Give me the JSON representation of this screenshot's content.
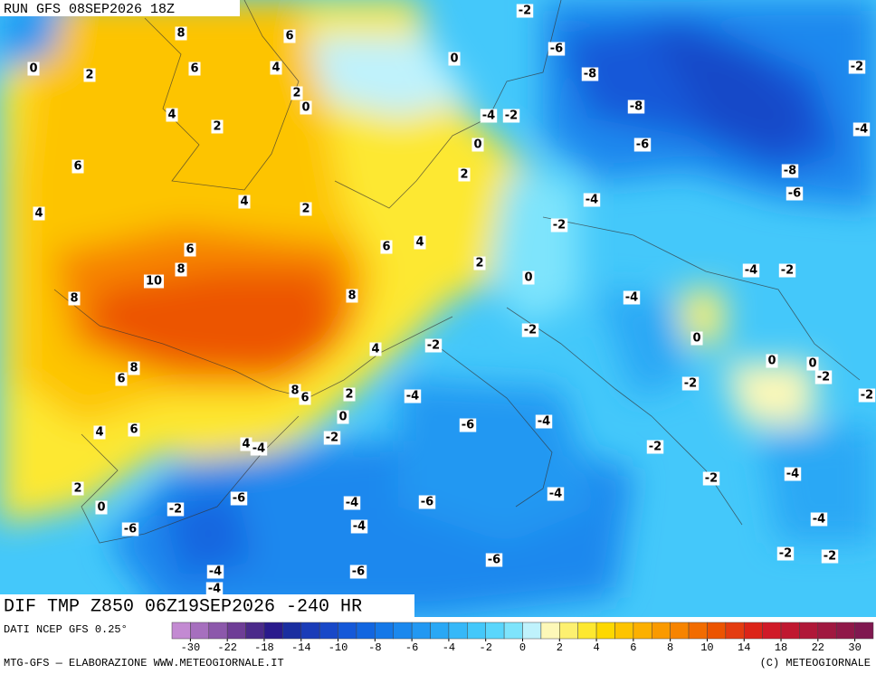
{
  "header": {
    "run": "RUN GFS 08SEP2026 18Z",
    "title": "DIF TMP Z850 06Z19SEP2026 -240 HR"
  },
  "contour_labels": [
    8,
    6,
    0,
    2,
    6,
    4,
    2,
    0,
    4,
    2,
    6,
    4,
    4,
    2,
    6,
    8,
    10,
    8,
    8,
    6,
    4,
    2,
    2,
    0,
    0,
    0,
    -2,
    -6,
    -8,
    -8,
    -6,
    -4,
    -2,
    -4,
    -2,
    -8,
    -6,
    -2,
    -4,
    -4,
    -2,
    -4,
    -2,
    -2,
    0,
    0,
    0,
    -2,
    -2,
    -2,
    4,
    8,
    6,
    8,
    6,
    2,
    0,
    -4,
    -6,
    -4,
    -2,
    4,
    -4,
    6,
    4,
    2,
    0,
    -2,
    -2,
    -4,
    -4,
    -2,
    -2,
    -4,
    -6,
    -4,
    -4,
    -6,
    -2,
    -4,
    -6,
    -4,
    -6,
    -6
  ],
  "footer": {
    "source": "DATI NCEP GFS 0.25°",
    "credit": "MTG-GFS — ELABORAZIONE WWW.METEOGIORNALE.IT",
    "copyright": "(C) METEOGIORNALE"
  },
  "colorbar": {
    "ticks": [
      -30,
      -22,
      -18,
      -14,
      -10,
      -8,
      -6,
      -4,
      -2,
      0,
      2,
      4,
      6,
      8,
      10,
      14,
      18,
      22,
      30
    ],
    "colors": [
      "#c38ad2",
      "#a66fbe",
      "#8c58ab",
      "#6e3d96",
      "#4b2a8a",
      "#2a1a8c",
      "#1a2ea0",
      "#1a3cb8",
      "#1848c8",
      "#1458d8",
      "#1266e0",
      "#1478e8",
      "#1a88ee",
      "#2298f2",
      "#2aa8f5",
      "#36b8f8",
      "#44c8fa",
      "#5ad6fc",
      "#7ee4fc",
      "#bff2fc",
      "#fdf8b8",
      "#fdf070",
      "#fde830",
      "#fdd800",
      "#fdc400",
      "#fcb000",
      "#fa9a00",
      "#f78400",
      "#f26c00",
      "#ec5400",
      "#e43c10",
      "#dc2418",
      "#d01a28",
      "#c01830",
      "#b01838",
      "#a01840",
      "#901848",
      "#801850"
    ]
  }
}
